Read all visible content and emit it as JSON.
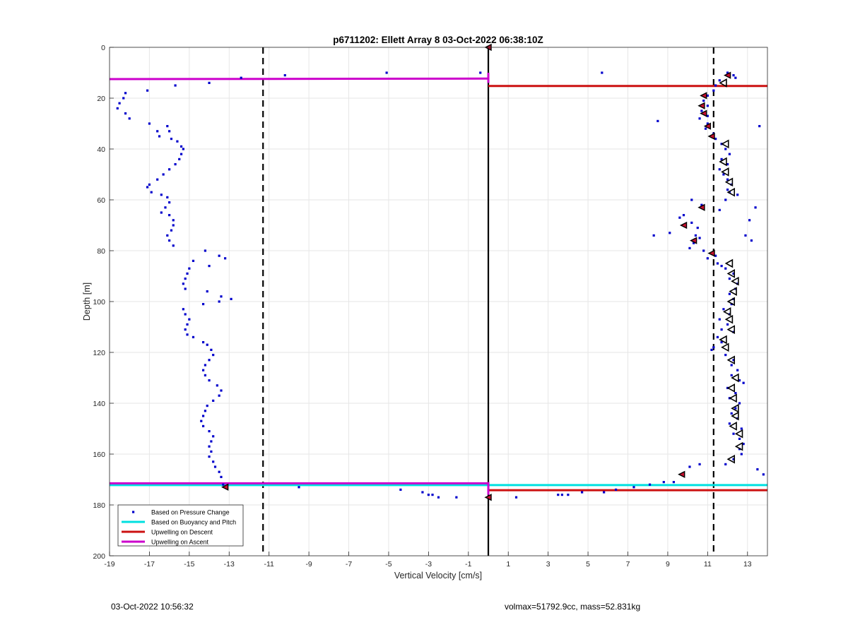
{
  "figure": {
    "footer_left": "03-Oct-2022 10:56:32",
    "footer_right": "volmax=51792.9cc, mass=52.831kg"
  },
  "chart_data": {
    "type": "scatter",
    "title": "p6711202: Ellett Array 8 03-Oct-2022 06:38:10Z",
    "xlabel": "Vertical Velocity [cm/s]",
    "ylabel": "Depth [m]",
    "xlim": [
      -19,
      14
    ],
    "ylim": [
      0,
      200
    ],
    "y_reversed": true,
    "grid": true,
    "legend_position": "bottom-left",
    "xticks": [
      -19,
      -17,
      -15,
      -13,
      -11,
      -9,
      -7,
      -5,
      -3,
      -1,
      1,
      3,
      5,
      7,
      9,
      11,
      13
    ],
    "yticks": [
      0,
      20,
      40,
      60,
      80,
      100,
      120,
      140,
      160,
      180,
      200
    ],
    "legend": [
      {
        "label": "Based on Pressure Change",
        "color": "#0000cc",
        "kind": "dot"
      },
      {
        "label": "Based on Buoyancy and Pitch",
        "color": "#00e0e0",
        "kind": "line"
      },
      {
        "label": "Upwelling on Descent",
        "color": "#cc1111",
        "kind": "line"
      },
      {
        "label": "Upwelling on Ascent",
        "color": "#cc00cc",
        "kind": "line"
      }
    ],
    "series": [
      {
        "name": "Based on Pressure Change",
        "color": "#0000cc",
        "points": [
          [
            -18.2,
            18
          ],
          [
            -18.3,
            20
          ],
          [
            -18.5,
            22
          ],
          [
            -18.6,
            24
          ],
          [
            -18.2,
            26
          ],
          [
            -18.0,
            28
          ],
          [
            -17.1,
            17
          ],
          [
            -17.0,
            30
          ],
          [
            -16.6,
            33
          ],
          [
            -16.5,
            35
          ],
          [
            -16.1,
            31
          ],
          [
            -16.0,
            33
          ],
          [
            -15.9,
            36
          ],
          [
            -15.6,
            37
          ],
          [
            -15.4,
            39
          ],
          [
            -15.3,
            40
          ],
          [
            -15.4,
            42
          ],
          [
            -15.5,
            44
          ],
          [
            -15.7,
            46
          ],
          [
            -16.0,
            48
          ],
          [
            -16.3,
            50
          ],
          [
            -16.6,
            52
          ],
          [
            -17.0,
            54
          ],
          [
            -17.1,
            55
          ],
          [
            -16.9,
            57
          ],
          [
            -16.4,
            58
          ],
          [
            -16.1,
            59
          ],
          [
            -16.0,
            61
          ],
          [
            -16.2,
            63
          ],
          [
            -16.4,
            65
          ],
          [
            -16.0,
            66
          ],
          [
            -15.8,
            68
          ],
          [
            -15.8,
            70
          ],
          [
            -15.9,
            72
          ],
          [
            -16.1,
            74
          ],
          [
            -16.0,
            76
          ],
          [
            -15.8,
            78
          ],
          [
            -15.7,
            15
          ],
          [
            -14.0,
            14
          ],
          [
            -12.4,
            12
          ],
          [
            -10.2,
            11
          ],
          [
            -5.1,
            10
          ],
          [
            -0.4,
            10
          ],
          [
            5.7,
            10
          ],
          [
            -14.2,
            80
          ],
          [
            -14.0,
            86
          ],
          [
            -13.5,
            82
          ],
          [
            -13.2,
            83
          ],
          [
            -14.8,
            84
          ],
          [
            -15.0,
            87
          ],
          [
            -15.1,
            89
          ],
          [
            -15.2,
            91
          ],
          [
            -15.3,
            93
          ],
          [
            -15.2,
            95
          ],
          [
            -14.1,
            96
          ],
          [
            -13.4,
            98
          ],
          [
            -12.9,
            99
          ],
          [
            -13.5,
            100
          ],
          [
            -14.3,
            101
          ],
          [
            -15.3,
            103
          ],
          [
            -15.2,
            105
          ],
          [
            -15.0,
            107
          ],
          [
            -15.1,
            109
          ],
          [
            -15.2,
            111
          ],
          [
            -15.1,
            113
          ],
          [
            -14.8,
            114
          ],
          [
            -14.3,
            116
          ],
          [
            -14.1,
            117
          ],
          [
            -13.9,
            119
          ],
          [
            -13.8,
            121
          ],
          [
            -14.0,
            123
          ],
          [
            -14.2,
            125
          ],
          [
            -14.3,
            127
          ],
          [
            -14.2,
            129
          ],
          [
            -14.0,
            131
          ],
          [
            -13.6,
            133
          ],
          [
            -13.4,
            135
          ],
          [
            -13.5,
            137
          ],
          [
            -13.8,
            139
          ],
          [
            -14.1,
            141
          ],
          [
            -14.2,
            143
          ],
          [
            -14.3,
            145
          ],
          [
            -14.4,
            147
          ],
          [
            -14.3,
            149
          ],
          [
            -14.0,
            151
          ],
          [
            -13.8,
            153
          ],
          [
            -13.9,
            155
          ],
          [
            -14.0,
            157
          ],
          [
            -13.9,
            159
          ],
          [
            -14.0,
            161
          ],
          [
            -13.8,
            163
          ],
          [
            -13.7,
            165
          ],
          [
            -13.5,
            167
          ],
          [
            -13.4,
            169
          ],
          [
            -13.3,
            172
          ],
          [
            -9.5,
            173
          ],
          [
            -4.4,
            174
          ],
          [
            -3.3,
            175
          ],
          [
            -3.0,
            176
          ],
          [
            -2.8,
            176
          ],
          [
            -2.5,
            177
          ],
          [
            -1.6,
            177
          ],
          [
            1.4,
            177
          ],
          [
            3.5,
            176
          ],
          [
            3.7,
            176
          ],
          [
            4.0,
            176
          ],
          [
            4.7,
            175
          ],
          [
            5.8,
            175
          ],
          [
            6.4,
            174
          ],
          [
            7.3,
            173
          ],
          [
            8.1,
            172
          ],
          [
            8.8,
            171
          ],
          [
            9.3,
            171
          ],
          [
            10.1,
            165
          ],
          [
            10.6,
            164
          ],
          [
            12.0,
            10
          ],
          [
            12.3,
            11
          ],
          [
            12.4,
            12
          ],
          [
            11.6,
            13
          ],
          [
            11.4,
            15
          ],
          [
            11.3,
            17
          ],
          [
            11.0,
            19
          ],
          [
            10.8,
            21
          ],
          [
            11.0,
            23
          ],
          [
            10.7,
            25
          ],
          [
            11.0,
            27
          ],
          [
            10.6,
            28
          ],
          [
            8.5,
            29
          ],
          [
            11.0,
            30
          ],
          [
            10.9,
            32
          ],
          [
            11.3,
            34
          ],
          [
            11.4,
            36
          ],
          [
            11.7,
            38
          ],
          [
            11.9,
            40
          ],
          [
            12.1,
            42
          ],
          [
            11.7,
            44
          ],
          [
            12.0,
            46
          ],
          [
            11.6,
            48
          ],
          [
            11.8,
            50
          ],
          [
            12.0,
            52
          ],
          [
            12.2,
            54
          ],
          [
            12.0,
            56
          ],
          [
            12.5,
            58
          ],
          [
            10.2,
            60
          ],
          [
            10.7,
            62
          ],
          [
            11.6,
            64
          ],
          [
            9.8,
            66
          ],
          [
            9.6,
            67
          ],
          [
            10.2,
            69
          ],
          [
            10.5,
            71
          ],
          [
            9.1,
            73
          ],
          [
            8.3,
            74
          ],
          [
            10.4,
            74
          ],
          [
            10.6,
            75
          ],
          [
            10.3,
            77
          ],
          [
            10.1,
            79
          ],
          [
            10.8,
            80
          ],
          [
            11.4,
            82
          ],
          [
            11.0,
            83
          ],
          [
            11.5,
            85
          ],
          [
            11.7,
            86
          ],
          [
            11.9,
            87
          ],
          [
            12.3,
            89
          ],
          [
            12.1,
            91
          ],
          [
            12.5,
            93
          ],
          [
            12.4,
            95
          ],
          [
            12.1,
            97
          ],
          [
            12.3,
            99
          ],
          [
            12.2,
            101
          ],
          [
            11.8,
            103
          ],
          [
            12.1,
            105
          ],
          [
            11.6,
            107
          ],
          [
            12.0,
            109
          ],
          [
            11.7,
            111
          ],
          [
            12.3,
            112
          ],
          [
            11.5,
            114
          ],
          [
            11.7,
            116
          ],
          [
            11.3,
            118
          ],
          [
            11.2,
            119
          ],
          [
            11.9,
            121
          ],
          [
            12.3,
            123
          ],
          [
            12.2,
            125
          ],
          [
            12.5,
            127
          ],
          [
            12.2,
            129
          ],
          [
            12.6,
            131
          ],
          [
            12.8,
            132
          ],
          [
            12.0,
            134
          ],
          [
            12.4,
            136
          ],
          [
            12.1,
            138
          ],
          [
            12.6,
            140
          ],
          [
            12.4,
            142
          ],
          [
            12.2,
            144
          ],
          [
            12.5,
            146
          ],
          [
            12.1,
            148
          ],
          [
            12.7,
            150
          ],
          [
            12.3,
            152
          ],
          [
            12.6,
            154
          ],
          [
            12.8,
            156
          ],
          [
            12.6,
            158
          ],
          [
            12.7,
            160
          ],
          [
            12.3,
            162
          ],
          [
            11.9,
            164
          ],
          [
            13.5,
            166
          ],
          [
            13.8,
            168
          ],
          [
            13.6,
            31
          ],
          [
            13.4,
            63
          ],
          [
            13.1,
            68
          ],
          [
            12.9,
            74
          ],
          [
            13.2,
            76
          ],
          [
            11.9,
            60
          ],
          [
            12.1,
            57
          ]
        ]
      },
      {
        "name": "Markers",
        "color": "#000000",
        "points": [
          [
            0,
            0
          ],
          [
            12.0,
            11
          ],
          [
            10.8,
            19
          ],
          [
            10.7,
            23
          ],
          [
            10.8,
            26
          ],
          [
            11.0,
            31
          ],
          [
            11.2,
            35
          ],
          [
            10.7,
            63
          ],
          [
            9.8,
            70
          ],
          [
            10.3,
            76
          ],
          [
            11.2,
            81
          ],
          [
            9.7,
            168
          ],
          [
            -13.2,
            173
          ],
          [
            0,
            177
          ],
          [
            11.8,
            14
          ],
          [
            11.9,
            38
          ],
          [
            11.8,
            45
          ],
          [
            11.9,
            49
          ],
          [
            12.1,
            53
          ],
          [
            12.2,
            57
          ],
          [
            12.1,
            85
          ],
          [
            12.2,
            89
          ],
          [
            12.4,
            92
          ],
          [
            12.3,
            96
          ],
          [
            12.2,
            100
          ],
          [
            12.0,
            104
          ],
          [
            12.1,
            107
          ],
          [
            12.2,
            111
          ],
          [
            11.8,
            115
          ],
          [
            11.9,
            118
          ],
          [
            12.2,
            123
          ],
          [
            12.4,
            130
          ],
          [
            12.2,
            134
          ],
          [
            12.3,
            138
          ],
          [
            12.4,
            142
          ],
          [
            12.4,
            145
          ],
          [
            12.3,
            149
          ],
          [
            12.6,
            152
          ],
          [
            12.6,
            157
          ],
          [
            12.2,
            162
          ]
        ]
      }
    ],
    "ascent_line": [
      [
        -19,
        12.5
      ],
      [
        0,
        12.3
      ]
    ],
    "ascent_line_bottom": [
      [
        -19,
        171.5
      ],
      [
        0,
        171.5
      ]
    ],
    "buoyancy_line_bottom": [
      [
        -19,
        172.2
      ],
      [
        14,
        172.2
      ]
    ],
    "descent_line": [
      [
        0,
        15.2
      ],
      [
        14,
        15.2
      ]
    ],
    "descent_line_bottom": [
      [
        0,
        174.2
      ],
      [
        14,
        174.2
      ]
    ],
    "zero_line_x": 0,
    "dashed_lines_x": [
      -11.3,
      11.3
    ]
  }
}
